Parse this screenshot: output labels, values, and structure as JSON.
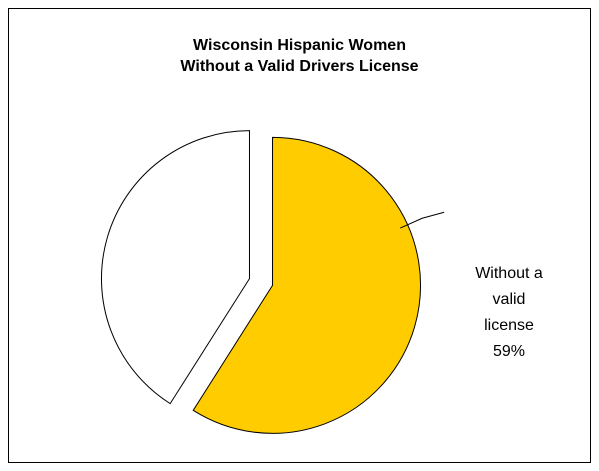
{
  "chart_data": {
    "type": "pie",
    "title": "Wisconsin Hispanic Women",
    "subtitle": "Without a Valid Drivers License",
    "slices": [
      {
        "label_lines": [
          "Without a",
          "valid",
          "license",
          "59%"
        ],
        "value": 59,
        "color": "#ffcc00",
        "exploded": true
      },
      {
        "label_lines": [],
        "value": 41,
        "color": "#ffffff",
        "exploded": true
      }
    ],
    "start_angle_deg": 0,
    "direction": "clockwise",
    "legend": "none"
  }
}
